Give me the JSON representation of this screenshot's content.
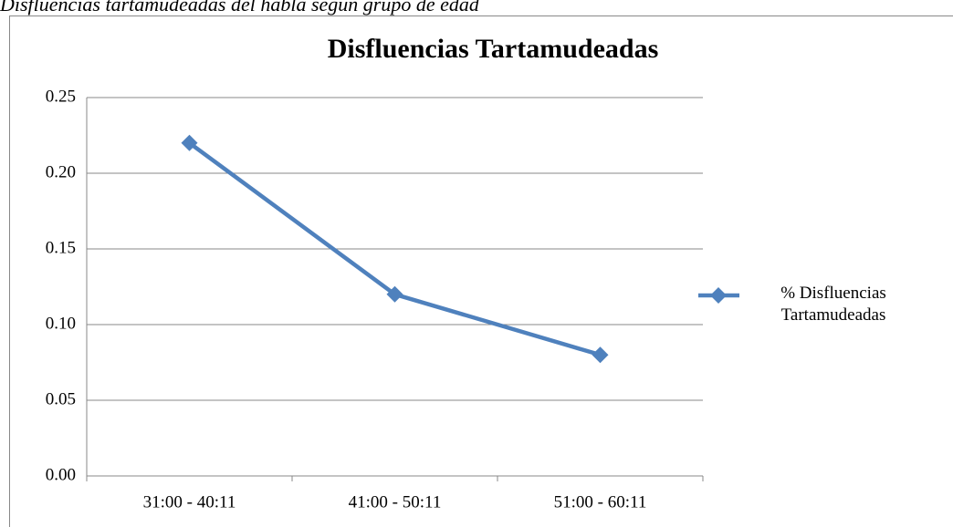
{
  "caption": "Disfluencias tartamudeadas del habla según grupo de edad",
  "chart_data": {
    "type": "line",
    "title": "Disfluencias Tartamudeadas",
    "categories": [
      "31:00 - 40:11",
      "41:00 - 50:11",
      "51:00 - 60:11"
    ],
    "series": [
      {
        "name": "% Disfluencias Tartamudeadas",
        "color": "#4f81bd",
        "values": [
          0.22,
          0.12,
          0.08
        ]
      }
    ],
    "ylim": [
      0,
      0.25
    ],
    "yticks": [
      {
        "value": 0,
        "label": "0.00"
      },
      {
        "value": 0.05,
        "label": "0.05"
      },
      {
        "value": 0.1,
        "label": "0.10"
      },
      {
        "value": 0.15,
        "label": "0.15"
      },
      {
        "value": 0.2,
        "label": "0.20"
      },
      {
        "value": 0.25,
        "label": "0.25"
      }
    ],
    "grid": true,
    "legend": "right"
  }
}
